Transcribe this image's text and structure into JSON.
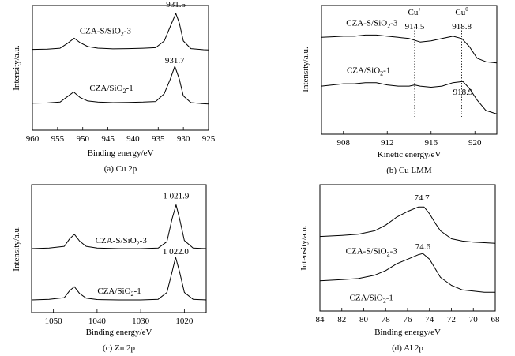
{
  "chart_data": [
    {
      "type": "line",
      "caption": "(a) Cu 2p",
      "xlabel": "Binding energy/eV",
      "ylabel": "Intensity/a.u.",
      "xlim": [
        960,
        925
      ],
      "xticks": [
        960,
        955,
        950,
        945,
        940,
        935,
        930,
        925
      ],
      "grid": false,
      "annotations": [
        {
          "text": "931.5",
          "x": 931.5,
          "series": 0
        },
        {
          "text": "931.7",
          "x": 931.7,
          "series": 1
        }
      ],
      "series": [
        {
          "name": "CZA-S/SiO2-3",
          "label_main": "CZA-S/SiO",
          "label_sub": "2",
          "label_tail": "-3",
          "label_x": 945.5,
          "points": [
            [
              960,
              0.665
            ],
            [
              957,
              0.667
            ],
            [
              954.5,
              0.675
            ],
            [
              953,
              0.72
            ],
            [
              951.7,
              0.765
            ],
            [
              950.5,
              0.725
            ],
            [
              949,
              0.69
            ],
            [
              947,
              0.676
            ],
            [
              944,
              0.67
            ],
            [
              941,
              0.672
            ],
            [
              938,
              0.675
            ],
            [
              935.5,
              0.68
            ],
            [
              933.8,
              0.74
            ],
            [
              932.6,
              0.87
            ],
            [
              931.5,
              0.985
            ],
            [
              930.8,
              0.9
            ],
            [
              930,
              0.74
            ],
            [
              928.5,
              0.672
            ],
            [
              926,
              0.662
            ],
            [
              925,
              0.66
            ]
          ]
        },
        {
          "name": "CZA/SiO2-1",
          "label_main": "CZA/SiO",
          "label_sub": "2",
          "label_tail": "-1",
          "label_x": 944.3,
          "points": [
            [
              960,
              0.185
            ],
            [
              957,
              0.187
            ],
            [
              954.5,
              0.195
            ],
            [
              953,
              0.245
            ],
            [
              951.8,
              0.285
            ],
            [
              950.5,
              0.235
            ],
            [
              949,
              0.205
            ],
            [
              947,
              0.195
            ],
            [
              944,
              0.19
            ],
            [
              941,
              0.192
            ],
            [
              938,
              0.195
            ],
            [
              935.5,
              0.2
            ],
            [
              933.8,
              0.27
            ],
            [
              932.6,
              0.4
            ],
            [
              931.7,
              0.515
            ],
            [
              930.8,
              0.4
            ],
            [
              930,
              0.25
            ],
            [
              928.5,
              0.19
            ],
            [
              926,
              0.18
            ],
            [
              925,
              0.178
            ]
          ]
        }
      ]
    },
    {
      "type": "line",
      "caption": "(b) Cu LMM",
      "xlabel": "Kinetic energy/eV",
      "ylabel": "Intensity/a.u.",
      "xlim": [
        906,
        922
      ],
      "xticks": [
        908,
        912,
        916,
        920
      ],
      "grid": false,
      "vlines": [
        914.5,
        918.8
      ],
      "annotations": [
        {
          "text": "Cu",
          "sup": "+",
          "x": 914.5,
          "series": 0,
          "role": "species"
        },
        {
          "text": "914.5",
          "x": 914.5,
          "series": 0
        },
        {
          "text": "Cu",
          "sup": "0",
          "x": 918.8,
          "series": 0,
          "role": "species"
        },
        {
          "text": "918.8",
          "x": 918.8,
          "series": 0
        },
        {
          "text": "918.9",
          "x": 918.9,
          "series": 1
        }
      ],
      "series": [
        {
          "name": "CZA-S/SiO2-3",
          "label_main": "CZA-S/SiO",
          "label_sub": "2",
          "label_tail": "-3",
          "label_x": 910.6,
          "points": [
            [
              906,
              0.78
            ],
            [
              907,
              0.785
            ],
            [
              908,
              0.79
            ],
            [
              909,
              0.79
            ],
            [
              910,
              0.8
            ],
            [
              911,
              0.8
            ],
            [
              912,
              0.79
            ],
            [
              913,
              0.78
            ],
            [
              914,
              0.77
            ],
            [
              915,
              0.74
            ],
            [
              916,
              0.75
            ],
            [
              917,
              0.77
            ],
            [
              918,
              0.79
            ],
            [
              918.8,
              0.77
            ],
            [
              919.5,
              0.7
            ],
            [
              920.2,
              0.6
            ],
            [
              921,
              0.57
            ],
            [
              922,
              0.56
            ]
          ]
        },
        {
          "name": "CZA/SiO2-1",
          "label_main": "CZA/SiO",
          "label_sub": "2",
          "label_tail": "-1",
          "label_x": 910.3,
          "points": [
            [
              906,
              0.36
            ],
            [
              907,
              0.37
            ],
            [
              908,
              0.38
            ],
            [
              909,
              0.38
            ],
            [
              910,
              0.39
            ],
            [
              911,
              0.39
            ],
            [
              912,
              0.37
            ],
            [
              913,
              0.36
            ],
            [
              914,
              0.36
            ],
            [
              914.5,
              0.37
            ],
            [
              915,
              0.36
            ],
            [
              916,
              0.35
            ],
            [
              917,
              0.36
            ],
            [
              918,
              0.39
            ],
            [
              918.9,
              0.4
            ],
            [
              919.5,
              0.34
            ],
            [
              920.2,
              0.24
            ],
            [
              921,
              0.15
            ],
            [
              922,
              0.12
            ]
          ]
        }
      ]
    },
    {
      "type": "line",
      "caption": "(c) Zn 2p",
      "xlabel": "Binding energy/eV",
      "ylabel": "Intensity/a.u.",
      "xlim": [
        1055,
        1015
      ],
      "xticks": [
        1050,
        1040,
        1030,
        1020
      ],
      "grid": false,
      "annotations": [
        {
          "text": "1 021.9",
          "x": 1021.9,
          "series": 0
        },
        {
          "text": "1 022.0",
          "x": 1022.0,
          "series": 1
        }
      ],
      "series": [
        {
          "name": "CZA-S/SiO2-3",
          "label_main": "CZA-S/SiO",
          "label_sub": "2",
          "label_tail": "-3",
          "label_x": 1034.5,
          "points": [
            [
              1055,
              0.5
            ],
            [
              1051,
              0.505
            ],
            [
              1047.5,
              0.52
            ],
            [
              1046.3,
              0.585
            ],
            [
              1045.2,
              0.625
            ],
            [
              1044,
              0.565
            ],
            [
              1042.5,
              0.52
            ],
            [
              1040,
              0.505
            ],
            [
              1035,
              0.5
            ],
            [
              1030,
              0.5
            ],
            [
              1026,
              0.505
            ],
            [
              1024,
              0.56
            ],
            [
              1022.8,
              0.76
            ],
            [
              1021.9,
              0.88
            ],
            [
              1021.1,
              0.76
            ],
            [
              1020,
              0.57
            ],
            [
              1018,
              0.505
            ],
            [
              1015,
              0.5
            ]
          ]
        },
        {
          "name": "CZA/SiO2-1",
          "label_main": "CZA/SiO",
          "label_sub": "2",
          "label_tail": "-1",
          "label_x": 1034.9,
          "points": [
            [
              1055,
              0.055
            ],
            [
              1051,
              0.06
            ],
            [
              1047.5,
              0.075
            ],
            [
              1046.3,
              0.135
            ],
            [
              1045.2,
              0.17
            ],
            [
              1044,
              0.11
            ],
            [
              1042.5,
              0.07
            ],
            [
              1040,
              0.058
            ],
            [
              1035,
              0.055
            ],
            [
              1030,
              0.055
            ],
            [
              1026,
              0.06
            ],
            [
              1024,
              0.12
            ],
            [
              1022.8,
              0.3
            ],
            [
              1022,
              0.425
            ],
            [
              1021.1,
              0.3
            ],
            [
              1020,
              0.12
            ],
            [
              1018,
              0.06
            ],
            [
              1015,
              0.055
            ]
          ]
        }
      ]
    },
    {
      "type": "line",
      "caption": "(d) Al 2p",
      "xlabel": "Binding energy/eV",
      "ylabel": "Intensity/a.u.",
      "xlim": [
        84,
        68
      ],
      "xticks": [
        84,
        82,
        80,
        78,
        76,
        74,
        72,
        70,
        68
      ],
      "grid": false,
      "annotations": [
        {
          "text": "74.7",
          "x": 74.7,
          "series": 0
        },
        {
          "text": "74.6",
          "x": 74.6,
          "series": 1
        }
      ],
      "series": [
        {
          "name": "CZA-S/SiO2-3",
          "label_main": "CZA-S/SiO",
          "label_sub": "2",
          "label_tail": "-3",
          "label_x": 79.3,
          "points": [
            [
              84,
              0.6
            ],
            [
              82,
              0.61
            ],
            [
              80.5,
              0.62
            ],
            [
              79,
              0.65
            ],
            [
              78,
              0.7
            ],
            [
              77,
              0.77
            ],
            [
              76,
              0.82
            ],
            [
              75,
              0.86
            ],
            [
              74.5,
              0.86
            ],
            [
              74,
              0.8
            ],
            [
              73.5,
              0.72
            ],
            [
              73,
              0.65
            ],
            [
              72,
              0.58
            ],
            [
              71,
              0.56
            ],
            [
              70,
              0.55
            ],
            [
              69,
              0.545
            ],
            [
              68,
              0.54
            ]
          ]
        },
        {
          "name": "CZA/SiO2-1",
          "label_main": "CZA/SiO",
          "label_sub": "2",
          "label_tail": "-1",
          "label_x": 79.3,
          "points": [
            [
              84,
              0.21
            ],
            [
              82,
              0.22
            ],
            [
              80.5,
              0.23
            ],
            [
              79,
              0.26
            ],
            [
              78,
              0.3
            ],
            [
              77,
              0.36
            ],
            [
              76,
              0.4
            ],
            [
              75,
              0.44
            ],
            [
              74.6,
              0.45
            ],
            [
              74,
              0.4
            ],
            [
              73.5,
              0.32
            ],
            [
              73,
              0.24
            ],
            [
              72,
              0.17
            ],
            [
              71,
              0.13
            ],
            [
              70,
              0.12
            ],
            [
              69,
              0.11
            ],
            [
              68,
              0.11
            ]
          ]
        }
      ]
    }
  ]
}
